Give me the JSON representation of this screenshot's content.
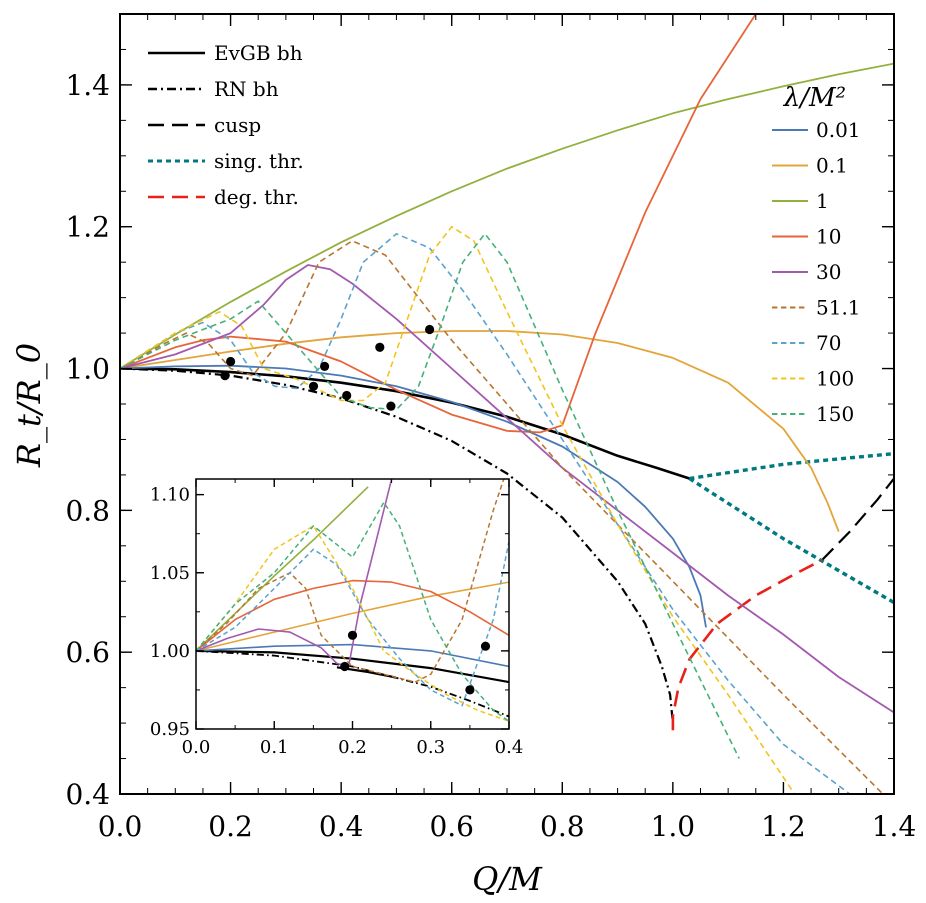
{
  "chart_data": [
    {
      "type": "line",
      "xlabel": "Q/M",
      "ylabel": "R_t/R_0",
      "xlim": [
        0,
        1.4
      ],
      "ylim": [
        0.4,
        1.5
      ],
      "xticks": [
        "0.0",
        "0.2",
        "0.4",
        "0.6",
        "0.8",
        "1.0",
        "1.2",
        "1.4"
      ],
      "yticks": [
        "0.4",
        "0.6",
        "0.8",
        "1.0",
        "1.2",
        "1.4"
      ],
      "legend_title": "λ/M²",
      "legend_style_entries": [
        {
          "label": "EvGB bh",
          "color": "#000000",
          "dash": "solid"
        },
        {
          "label": "RN bh",
          "color": "#000000",
          "dash": "dashdot"
        },
        {
          "label": "cusp",
          "color": "#000000",
          "dash": "longdash"
        },
        {
          "label": "sing. thr.",
          "color": "#007a80",
          "dash": "dotted"
        },
        {
          "label": "deg. thr.",
          "color": "#e8221a",
          "dash": "longdash"
        }
      ],
      "legend_lambda_entries": [
        {
          "label": "0.01",
          "color": "#4b79b6",
          "dash": "solid"
        },
        {
          "label": "0.1",
          "color": "#e3a43a",
          "dash": "solid"
        },
        {
          "label": "1",
          "color": "#92b03d",
          "dash": "solid"
        },
        {
          "label": "10",
          "color": "#e8643a",
          "dash": "solid"
        },
        {
          "label": "30",
          "color": "#a35aae",
          "dash": "solid"
        },
        {
          "label": "51.1",
          "color": "#b8752f",
          "dash": "short"
        },
        {
          "label": "70",
          "color": "#5ba2cc",
          "dash": "short"
        },
        {
          "label": "100",
          "color": "#f2c41c",
          "dash": "short"
        },
        {
          "label": "150",
          "color": "#46b07a",
          "dash": "short"
        }
      ],
      "series": [
        {
          "name": "EvGB bh",
          "color": "#000000",
          "dash": "solid",
          "width": 2.6,
          "x": [
            0,
            0.1,
            0.2,
            0.3,
            0.4,
            0.5,
            0.6,
            0.7,
            0.8,
            0.9,
            0.97,
            1.03
          ],
          "y": [
            1.0,
            0.999,
            0.995,
            0.989,
            0.98,
            0.968,
            0.952,
            0.932,
            0.907,
            0.877,
            0.86,
            0.845
          ]
        },
        {
          "name": "RN bh",
          "color": "#000000",
          "dash": "dashdot",
          "width": 2.2,
          "x": [
            0,
            0.1,
            0.2,
            0.3,
            0.4,
            0.5,
            0.6,
            0.7,
            0.8,
            0.9,
            0.95,
            0.98,
            0.995,
            1.0
          ],
          "y": [
            1.0,
            0.997,
            0.99,
            0.977,
            0.958,
            0.932,
            0.898,
            0.852,
            0.79,
            0.7,
            0.64,
            0.58,
            0.54,
            0.5
          ]
        },
        {
          "name": "cusp",
          "color": "#000000",
          "dash": "longdash",
          "width": 2.2,
          "x": [
            1.27,
            1.32,
            1.37,
            1.4
          ],
          "y": [
            0.73,
            0.77,
            0.815,
            0.845
          ]
        },
        {
          "name": "sing. thr. 1",
          "color": "#007a80",
          "dash": "dotted",
          "width": 3.4,
          "x": [
            1.03,
            1.2,
            1.4
          ],
          "y": [
            0.845,
            0.865,
            0.88
          ]
        },
        {
          "name": "sing. thr. 2",
          "color": "#007a80",
          "dash": "dotted",
          "width": 3.4,
          "x": [
            1.03,
            1.2,
            1.4
          ],
          "y": [
            0.845,
            0.76,
            0.67
          ]
        },
        {
          "name": "deg. thr.",
          "color": "#e8221a",
          "dash": "longdash",
          "width": 2.6,
          "x": [
            1.0,
            1.0,
            1.01,
            1.03,
            1.08,
            1.15,
            1.22,
            1.27
          ],
          "y": [
            0.49,
            0.51,
            0.55,
            0.59,
            0.64,
            0.68,
            0.71,
            0.73
          ]
        },
        {
          "name": "1",
          "color": "#92b03d",
          "dash": "solid",
          "width": 1.8,
          "x": [
            0,
            0.1,
            0.2,
            0.3,
            0.4,
            0.5,
            0.6,
            0.7,
            0.8,
            0.9,
            1.0,
            1.1,
            1.2,
            1.3,
            1.4
          ],
          "y": [
            1.0,
            1.048,
            1.094,
            1.137,
            1.178,
            1.215,
            1.25,
            1.282,
            1.31,
            1.336,
            1.36,
            1.38,
            1.398,
            1.415,
            1.43
          ]
        },
        {
          "name": "0.1",
          "color": "#e3a43a",
          "dash": "solid",
          "width": 1.8,
          "x": [
            0,
            0.1,
            0.2,
            0.3,
            0.4,
            0.5,
            0.6,
            0.7,
            0.8,
            0.9,
            1.0,
            1.1,
            1.2,
            1.25,
            1.28,
            1.3
          ],
          "y": [
            1.0,
            1.012,
            1.024,
            1.035,
            1.044,
            1.05,
            1.053,
            1.053,
            1.048,
            1.036,
            1.015,
            0.98,
            0.915,
            0.86,
            0.81,
            0.77
          ]
        },
        {
          "name": "10",
          "color": "#e8643a",
          "dash": "solid",
          "width": 1.8,
          "x": [
            0,
            0.1,
            0.15,
            0.2,
            0.3,
            0.4,
            0.5,
            0.6,
            0.7,
            0.76,
            0.8,
            0.86,
            0.95,
            1.05,
            1.15
          ],
          "y": [
            1.0,
            1.03,
            1.04,
            1.045,
            1.038,
            1.01,
            0.97,
            0.935,
            0.912,
            0.91,
            0.92,
            1.05,
            1.22,
            1.38,
            1.5
          ]
        },
        {
          "name": "0.01",
          "color": "#4b79b6",
          "dash": "solid",
          "width": 1.8,
          "x": [
            0,
            0.1,
            0.2,
            0.3,
            0.4,
            0.5,
            0.6,
            0.7,
            0.8,
            0.9,
            0.95,
            1.0,
            1.03,
            1.05,
            1.06
          ],
          "y": [
            1.0,
            1.003,
            1.004,
            1.0,
            0.99,
            0.975,
            0.953,
            0.925,
            0.89,
            0.84,
            0.805,
            0.76,
            0.72,
            0.68,
            0.635
          ]
        },
        {
          "name": "30",
          "color": "#a35aae",
          "dash": "solid",
          "width": 1.8,
          "x": [
            0,
            0.1,
            0.2,
            0.26,
            0.3,
            0.34,
            0.38,
            0.42,
            0.5,
            0.6,
            0.7,
            0.8,
            0.9,
            1.0,
            1.1,
            1.2,
            1.3,
            1.4
          ],
          "y": [
            1.0,
            1.02,
            1.05,
            1.09,
            1.125,
            1.146,
            1.14,
            1.12,
            1.07,
            1.0,
            0.93,
            0.86,
            0.8,
            0.74,
            0.68,
            0.625,
            0.565,
            0.515
          ]
        },
        {
          "name": "51.1",
          "color": "#b8752f",
          "dash": "short",
          "width": 1.6,
          "x": [
            0,
            0.08,
            0.12,
            0.16,
            0.2,
            0.24,
            0.3,
            0.36,
            0.42,
            0.48,
            0.6,
            0.8,
            1.0,
            1.2,
            1.38
          ],
          "y": [
            1.0,
            1.035,
            1.05,
            1.035,
            1.0,
            0.99,
            1.05,
            1.15,
            1.18,
            1.16,
            1.04,
            0.86,
            0.7,
            0.54,
            0.4
          ]
        },
        {
          "name": "70",
          "color": "#5ba2cc",
          "dash": "short",
          "width": 1.6,
          "x": [
            0,
            0.1,
            0.15,
            0.2,
            0.24,
            0.28,
            0.32,
            0.36,
            0.4,
            0.44,
            0.5,
            0.56,
            0.62,
            0.7,
            0.8,
            0.9,
            1.0,
            1.1,
            1.2,
            1.32
          ],
          "y": [
            1.0,
            1.05,
            1.065,
            1.04,
            0.995,
            0.975,
            0.972,
            1.0,
            1.07,
            1.15,
            1.19,
            1.17,
            1.11,
            1.02,
            0.9,
            0.78,
            0.66,
            0.56,
            0.47,
            0.4
          ]
        },
        {
          "name": "100",
          "color": "#f2c41c",
          "dash": "short",
          "width": 1.6,
          "x": [
            0,
            0.1,
            0.18,
            0.22,
            0.26,
            0.32,
            0.4,
            0.44,
            0.48,
            0.52,
            0.56,
            0.6,
            0.64,
            0.7,
            0.8,
            0.9,
            1.0,
            1.1,
            1.22
          ],
          "y": [
            1.0,
            1.05,
            1.08,
            1.06,
            1.0,
            0.985,
            0.955,
            0.955,
            0.98,
            1.07,
            1.16,
            1.2,
            1.18,
            1.08,
            0.92,
            0.78,
            0.65,
            0.54,
            0.4
          ]
        },
        {
          "name": "150",
          "color": "#46b07a",
          "dash": "short",
          "width": 1.6,
          "x": [
            0,
            0.1,
            0.2,
            0.25,
            0.3,
            0.4,
            0.45,
            0.5,
            0.54,
            0.58,
            0.62,
            0.66,
            0.7,
            0.8,
            0.9,
            1.0,
            1.12
          ],
          "y": [
            1.0,
            1.04,
            1.07,
            1.095,
            1.05,
            0.96,
            0.945,
            0.942,
            0.975,
            1.06,
            1.15,
            1.19,
            1.15,
            0.97,
            0.8,
            0.64,
            0.45
          ]
        }
      ],
      "markers": {
        "color": "#000000",
        "x": [
          0.19,
          0.2,
          0.35,
          0.37,
          0.41,
          0.47,
          0.49,
          0.56
        ],
        "y": [
          0.99,
          1.01,
          0.975,
          1.003,
          0.962,
          1.03,
          0.947,
          1.055
        ]
      }
    },
    {
      "type": "line",
      "role": "inset",
      "xlim": [
        0,
        0.4
      ],
      "ylim": [
        0.95,
        1.11
      ],
      "xticks": [
        "0.0",
        "0.1",
        "0.2",
        "0.3",
        "0.4"
      ],
      "yticks": [
        "0.95",
        "1.00",
        "1.05",
        "1.10"
      ],
      "series": [
        {
          "name": "EvGB bh",
          "color": "#000000",
          "dash": "solid",
          "width": 2.2,
          "x": [
            0,
            0.1,
            0.2,
            0.3,
            0.4
          ],
          "y": [
            1.0,
            0.999,
            0.995,
            0.989,
            0.98
          ]
        },
        {
          "name": "EvGB bh branch",
          "color": "#000000",
          "dash": "solid",
          "width": 2.2,
          "x": [
            0.18,
            0.22,
            0.255
          ],
          "y": [
            0.9895,
            0.9865,
            0.983
          ]
        },
        {
          "name": "RN bh",
          "color": "#000000",
          "dash": "dashdot",
          "width": 1.8,
          "x": [
            0,
            0.1,
            0.2,
            0.3,
            0.35,
            0.4
          ],
          "y": [
            1.0,
            0.997,
            0.99,
            0.977,
            0.968,
            0.958
          ]
        },
        {
          "name": "1",
          "color": "#92b03d",
          "dash": "solid",
          "width": 1.6,
          "x": [
            0,
            0.05,
            0.1,
            0.15,
            0.22
          ],
          "y": [
            1.0,
            1.024,
            1.048,
            1.071,
            1.105
          ]
        },
        {
          "name": "0.1",
          "color": "#e3a43a",
          "dash": "solid",
          "width": 1.6,
          "x": [
            0,
            0.1,
            0.2,
            0.3,
            0.4
          ],
          "y": [
            1.0,
            1.012,
            1.024,
            1.035,
            1.044
          ]
        },
        {
          "name": "10",
          "color": "#e8643a",
          "dash": "solid",
          "width": 1.6,
          "x": [
            0,
            0.05,
            0.1,
            0.15,
            0.2,
            0.25,
            0.3,
            0.35,
            0.4
          ],
          "y": [
            1.0,
            1.02,
            1.033,
            1.04,
            1.045,
            1.044,
            1.038,
            1.025,
            1.01
          ]
        },
        {
          "name": "0.01",
          "color": "#4b79b6",
          "dash": "solid",
          "width": 1.6,
          "x": [
            0,
            0.1,
            0.2,
            0.3,
            0.4
          ],
          "y": [
            1.0,
            1.003,
            1.004,
            1.0,
            0.99
          ]
        },
        {
          "name": "30",
          "color": "#a35aae",
          "dash": "solid",
          "width": 1.6,
          "x": [
            0,
            0.04,
            0.08,
            0.12,
            0.16,
            0.18,
            0.195,
            0.21,
            0.23,
            0.25
          ],
          "y": [
            1.0,
            1.008,
            1.014,
            1.012,
            1.002,
            0.992,
            0.99,
            1.03,
            1.07,
            1.11
          ]
        },
        {
          "name": "51.1",
          "color": "#b8752f",
          "dash": "short",
          "width": 1.5,
          "x": [
            0,
            0.04,
            0.08,
            0.12,
            0.14,
            0.16,
            0.2,
            0.24,
            0.28,
            0.3,
            0.34,
            0.38,
            0.4
          ],
          "y": [
            1.0,
            1.018,
            1.04,
            1.05,
            1.04,
            1.01,
            0.99,
            0.985,
            0.98,
            0.985,
            1.02,
            1.09,
            1.12
          ]
        },
        {
          "name": "70",
          "color": "#5ba2cc",
          "dash": "short",
          "width": 1.5,
          "x": [
            0,
            0.05,
            0.1,
            0.15,
            0.18,
            0.22,
            0.26,
            0.3,
            0.34,
            0.38,
            0.4
          ],
          "y": [
            1.0,
            1.015,
            1.04,
            1.065,
            1.055,
            1.02,
            0.995,
            0.975,
            0.965,
            1.02,
            1.07
          ]
        },
        {
          "name": "100",
          "color": "#f2c41c",
          "dash": "short",
          "width": 1.5,
          "x": [
            0,
            0.05,
            0.1,
            0.15,
            0.2,
            0.24,
            0.28,
            0.32,
            0.36,
            0.4
          ],
          "y": [
            1.0,
            1.03,
            1.065,
            1.08,
            1.04,
            1.0,
            0.985,
            0.972,
            0.962,
            0.955
          ]
        },
        {
          "name": "150",
          "color": "#46b07a",
          "dash": "short",
          "width": 1.5,
          "x": [
            0,
            0.05,
            0.1,
            0.15,
            0.2,
            0.24,
            0.26,
            0.3,
            0.34,
            0.38,
            0.4
          ],
          "y": [
            1.0,
            1.03,
            1.05,
            1.08,
            1.06,
            1.095,
            1.08,
            1.02,
            0.985,
            0.962,
            0.955
          ]
        }
      ],
      "markers": {
        "color": "#000000",
        "x": [
          0.19,
          0.2,
          0.35,
          0.37
        ],
        "y": [
          0.99,
          1.01,
          0.975,
          1.003
        ]
      }
    }
  ]
}
